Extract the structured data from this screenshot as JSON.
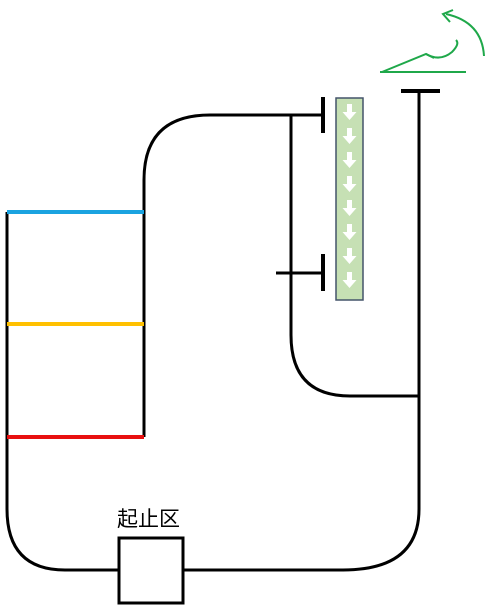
{
  "labels": {
    "start_stop_zone": "起止区"
  },
  "colors": {
    "track": "#000000",
    "line_blue": "#1aa3e0",
    "line_yellow": "#ffc000",
    "line_red": "#e81010",
    "direction_arrow": "#1fa84a",
    "conveyor_fill": "#c6e0b4",
    "conveyor_border": "#44546a",
    "conveyor_arrow": "#ffffff"
  },
  "icons": {
    "direction": "curved-arrow-icon",
    "conveyor": "down-arrow-icon"
  }
}
